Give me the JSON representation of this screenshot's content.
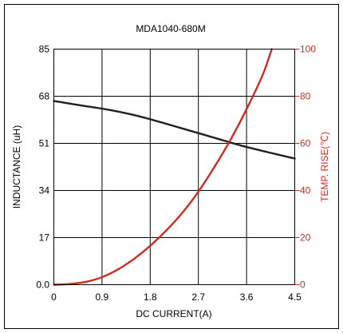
{
  "chart_data": {
    "type": "line",
    "title": "MDA1040-680M",
    "xlabel": "DC CURRENT(A)",
    "ylabel": "INDUCTANCE (uH)",
    "y2label": "TEMP. RISE(℃)",
    "xlim": [
      0,
      4.5
    ],
    "ylim": [
      0,
      85
    ],
    "y2lim": [
      0,
      100
    ],
    "x_ticks": [
      "0",
      "0.9",
      "1.8",
      "2.7",
      "3.6",
      "4.5"
    ],
    "y_ticks": [
      "0.0",
      "17",
      "34",
      "51",
      "68",
      "85"
    ],
    "y2_ticks": [
      "0",
      "20",
      "40",
      "60",
      "80",
      "100"
    ],
    "grid": true,
    "colors": {
      "inductance": "#231f20",
      "temp_rise": "#cc2b22",
      "frame": "#000000"
    },
    "series": [
      {
        "axis": "left",
        "x": [
          0,
          0.5,
          1.0,
          1.5,
          2.0,
          2.5,
          3.0,
          3.5,
          4.0,
          4.5
        ],
        "values": [
          66.3,
          64.7,
          63.2,
          61.2,
          58.6,
          55.8,
          53.0,
          50.2,
          47.8,
          45.5
        ]
      },
      {
        "axis": "right",
        "x": [
          0,
          0.3,
          0.6,
          0.9,
          1.2,
          1.5,
          1.8,
          2.1,
          2.4,
          2.7,
          3.0,
          3.3,
          3.6,
          3.9,
          4.07
        ],
        "values": [
          0,
          0.3,
          1.2,
          3.2,
          6.5,
          11.0,
          16.5,
          23.0,
          30.5,
          39.5,
          50.0,
          61.5,
          74.5,
          89.0,
          100
        ]
      }
    ]
  }
}
